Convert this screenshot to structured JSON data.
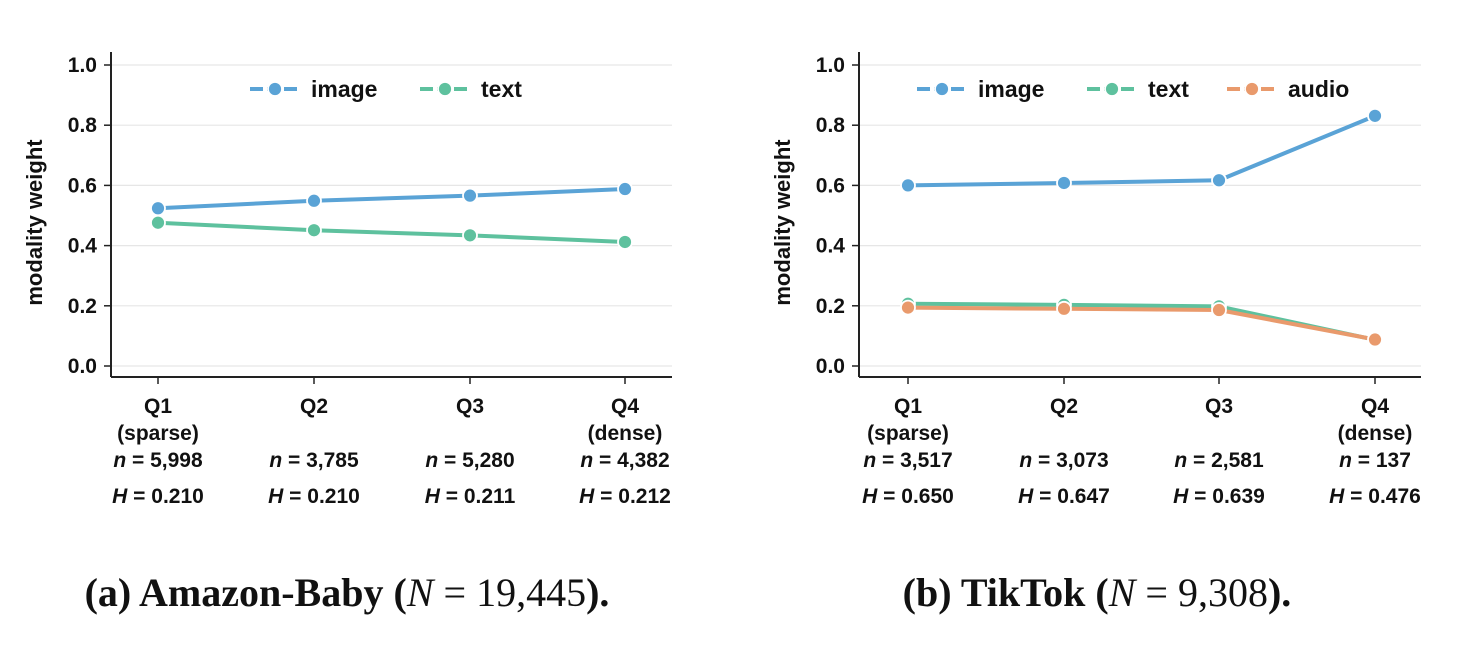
{
  "chart_data": [
    {
      "type": "line",
      "caption": "(a) Amazon-Baby (N = 19,445).",
      "caption_parts": {
        "label": "(a) Amazon-Baby (",
        "var": "N",
        "eq": " = ",
        "num": "19,445",
        "end": ")."
      },
      "ylabel": "modality weight",
      "ylim": [
        0,
        1.0
      ],
      "yticks": [
        "0.0",
        "0.2",
        "0.4",
        "0.6",
        "0.8",
        "1.0"
      ],
      "ytick_values": [
        0,
        0.2,
        0.4,
        0.6,
        0.8,
        1.0
      ],
      "grid": true,
      "legend": "top-center",
      "categories": [
        {
          "name": "Q1",
          "sub": "(sparse)",
          "n": "n = 5,998",
          "H": "H = 0.210"
        },
        {
          "name": "Q2",
          "sub": "",
          "n": "n = 3,785",
          "H": "H = 0.210"
        },
        {
          "name": "Q3",
          "sub": "",
          "n": "n = 5,280",
          "H": "H = 0.211"
        },
        {
          "name": "Q4",
          "sub": "(dense)",
          "n": "n = 4,382",
          "H": "H = 0.212"
        }
      ],
      "series": [
        {
          "name": "image",
          "color": "#5aa3d6",
          "values": [
            0.524,
            0.549,
            0.566,
            0.588
          ]
        },
        {
          "name": "text",
          "color": "#5ec19e",
          "values": [
            0.476,
            0.451,
            0.434,
            0.412
          ]
        }
      ]
    },
    {
      "type": "line",
      "caption": "(b) TikTok (N = 9,308).",
      "caption_parts": {
        "label": "(b) TikTok (",
        "var": "N",
        "eq": " = ",
        "num": "9,308",
        "end": ")."
      },
      "ylabel": "modality weight",
      "ylim": [
        0,
        1.0
      ],
      "yticks": [
        "0.0",
        "0.2",
        "0.4",
        "0.6",
        "0.8",
        "1.0"
      ],
      "ytick_values": [
        0,
        0.2,
        0.4,
        0.6,
        0.8,
        1.0
      ],
      "grid": true,
      "legend": "top-center",
      "categories": [
        {
          "name": "Q1",
          "sub": "(sparse)",
          "n": "n = 3,517",
          "H": "H = 0.650"
        },
        {
          "name": "Q2",
          "sub": "",
          "n": "n = 3,073",
          "H": "H = 0.647"
        },
        {
          "name": "Q3",
          "sub": "",
          "n": "n = 2,581",
          "H": "H = 0.639"
        },
        {
          "name": "Q4",
          "sub": "(dense)",
          "n": "n = 137",
          "H": "H = 0.476"
        }
      ],
      "series": [
        {
          "name": "image",
          "color": "#5aa3d6",
          "values": [
            0.6,
            0.608,
            0.617,
            0.831
          ]
        },
        {
          "name": "text",
          "color": "#5ec19e",
          "values": [
            0.207,
            0.203,
            0.198,
            0.087
          ]
        },
        {
          "name": "audio",
          "color": "#e99a6c",
          "values": [
            0.194,
            0.19,
            0.186,
            0.088
          ]
        }
      ]
    }
  ]
}
